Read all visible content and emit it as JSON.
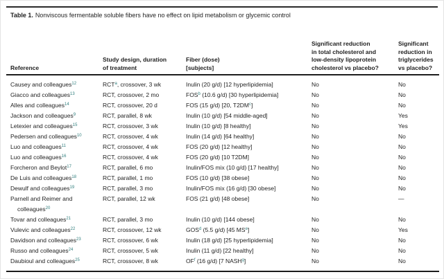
{
  "colors": {
    "superscript_accent": "#2e7d7c",
    "text": "#1f1f1f",
    "rule": "#1c1c1c"
  },
  "title": {
    "label": "Table 1.",
    "text": "Nonviscous fermentable soluble fibers have no effect on lipid metabolism or glycemic control"
  },
  "table": {
    "headers": [
      "Reference",
      "Study design, duration\nof treatment",
      "Fiber (dose)\n[subjects]",
      "Significant reduction\nin total cholesterol and\nlow-density lipoprotein\ncholesterol vs placebo?",
      "Significant\nreduction in\ntriglycerides\nvs placebo?"
    ],
    "rows": [
      {
        "ref": [
          {
            "t": "Causey and colleagues"
          },
          {
            "s": "12"
          }
        ],
        "design": [
          {
            "t": "RCT"
          },
          {
            "s": "a"
          },
          {
            "t": ", crossover, 3 wk"
          }
        ],
        "fiber": [
          {
            "t": "Inulin (20 g/d) [12 hyperlipidemia]"
          }
        ],
        "chol": "No",
        "tg": "No"
      },
      {
        "ref": [
          {
            "t": "Giacco and colleagues"
          },
          {
            "s": "13"
          }
        ],
        "design": [
          {
            "t": "RCT, crossover, 2 mo"
          }
        ],
        "fiber": [
          {
            "t": "FOS"
          },
          {
            "s": "b"
          },
          {
            "t": " (10.6 g/d) [30 hyperlipidemia]"
          }
        ],
        "chol": "No",
        "tg": "No"
      },
      {
        "ref": [
          {
            "t": "Alles and colleagues"
          },
          {
            "s": "14"
          }
        ],
        "design": [
          {
            "t": "RCT, crossover, 20 d"
          }
        ],
        "fiber": [
          {
            "t": "FOS (15 g/d) [20, T2DM"
          },
          {
            "s": "c"
          },
          {
            "t": "]"
          }
        ],
        "chol": "No",
        "tg": "No"
      },
      {
        "ref": [
          {
            "t": "Jackson and colleagues"
          },
          {
            "s": "9"
          }
        ],
        "design": [
          {
            "t": "RCT, parallel, 8 wk"
          }
        ],
        "fiber": [
          {
            "t": "Inulin (10 g/d) [54 middle-aged]"
          }
        ],
        "chol": "No",
        "tg": "Yes"
      },
      {
        "ref": [
          {
            "t": "Letexier and colleagues"
          },
          {
            "s": "15"
          }
        ],
        "design": [
          {
            "t": "RCT, crossover, 3 wk"
          }
        ],
        "fiber": [
          {
            "t": "Inulin (10 g/d) [8 healthy]"
          }
        ],
        "chol": "No",
        "tg": "Yes"
      },
      {
        "ref": [
          {
            "t": "Pedersen and colleagues"
          },
          {
            "s": "10"
          }
        ],
        "design": [
          {
            "t": "RCT, crossover, 4 wk"
          }
        ],
        "fiber": [
          {
            "t": "Inulin (14 g/d) [64 healthy]"
          }
        ],
        "chol": "No",
        "tg": "No"
      },
      {
        "ref": [
          {
            "t": "Luo and colleagues"
          },
          {
            "s": "11"
          }
        ],
        "design": [
          {
            "t": "RCT, crossover, 4 wk"
          }
        ],
        "fiber": [
          {
            "t": "FOS (20 g/d) [12 healthy]"
          }
        ],
        "chol": "No",
        "tg": "No"
      },
      {
        "ref": [
          {
            "t": "Luo and colleagues"
          },
          {
            "s": "16"
          }
        ],
        "design": [
          {
            "t": "RCT, crossover, 4 wk"
          }
        ],
        "fiber": [
          {
            "t": "FOS (20 g/d) [10 T2DM]"
          }
        ],
        "chol": "No",
        "tg": "No"
      },
      {
        "ref": [
          {
            "t": "Forcheron and Beylot"
          },
          {
            "s": "17"
          }
        ],
        "design": [
          {
            "t": "RCT, parallel, 6 mo"
          }
        ],
        "fiber": [
          {
            "t": "Inulin/FOS mix (10 g/d) [17 healthy]"
          }
        ],
        "chol": "No",
        "tg": "No"
      },
      {
        "ref": [
          {
            "t": "De Luis and colleagues"
          },
          {
            "s": "18"
          }
        ],
        "design": [
          {
            "t": "RCT, parallel, 1 mo"
          }
        ],
        "fiber": [
          {
            "t": "FOS (10 g/d) [38 obese]"
          }
        ],
        "chol": "No",
        "tg": "No"
      },
      {
        "ref": [
          {
            "t": "Dewulf and colleagues"
          },
          {
            "s": "19"
          }
        ],
        "design": [
          {
            "t": "RCT, parallel, 3 mo"
          }
        ],
        "fiber": [
          {
            "t": "Inulin/FOS mix (16 g/d) [30 obese]"
          }
        ],
        "chol": "No",
        "tg": "No"
      },
      {
        "ref": [
          {
            "t": "Parnell and Reimer and colleagues"
          },
          {
            "s": "20"
          }
        ],
        "design": [
          {
            "t": "RCT, parallel, 12 wk"
          }
        ],
        "fiber": [
          {
            "t": "FOS (21 g/d) [48 obese]"
          }
        ],
        "chol": "No",
        "tg": "—"
      },
      {
        "ref": [
          {
            "t": "Tovar and colleagues"
          },
          {
            "s": "21"
          }
        ],
        "design": [
          {
            "t": "RCT, parallel, 3 mo"
          }
        ],
        "fiber": [
          {
            "t": "Inulin (10 g/d) [144 obese]"
          }
        ],
        "chol": "No",
        "tg": "No"
      },
      {
        "ref": [
          {
            "t": "Vulevic and colleagues"
          },
          {
            "s": "22"
          }
        ],
        "design": [
          {
            "t": "RCT, crossover, 12 wk"
          }
        ],
        "fiber": [
          {
            "t": "GOS"
          },
          {
            "s": "d"
          },
          {
            "t": " (5.5 g/d) [45 MS"
          },
          {
            "s": "e"
          },
          {
            "t": "]"
          }
        ],
        "chol": "No",
        "tg": "Yes"
      },
      {
        "ref": [
          {
            "t": "Davidson and colleagues"
          },
          {
            "s": "23"
          }
        ],
        "design": [
          {
            "t": "RCT, crossover, 6 wk"
          }
        ],
        "fiber": [
          {
            "t": "Inulin (18 g/d) [25 hyperlipidemia]"
          }
        ],
        "chol": "No",
        "tg": "No"
      },
      {
        "ref": [
          {
            "t": "Russo and colleagues"
          },
          {
            "s": "24"
          }
        ],
        "design": [
          {
            "t": "RCT, crossover, 5 wk"
          }
        ],
        "fiber": [
          {
            "t": "Inulin (11 g/d) [22 healthy]"
          }
        ],
        "chol": "No",
        "tg": "No"
      },
      {
        "ref": [
          {
            "t": "Daubioul and colleagues"
          },
          {
            "s": "25"
          }
        ],
        "design": [
          {
            "t": "RCT, crossover, 8 wk"
          }
        ],
        "fiber": [
          {
            "t": "OF"
          },
          {
            "s": "f"
          },
          {
            "t": " (16 g/d) [7 NASH"
          },
          {
            "s": "g"
          },
          {
            "t": "]"
          }
        ],
        "chol": "No",
        "tg": "No"
      }
    ]
  }
}
